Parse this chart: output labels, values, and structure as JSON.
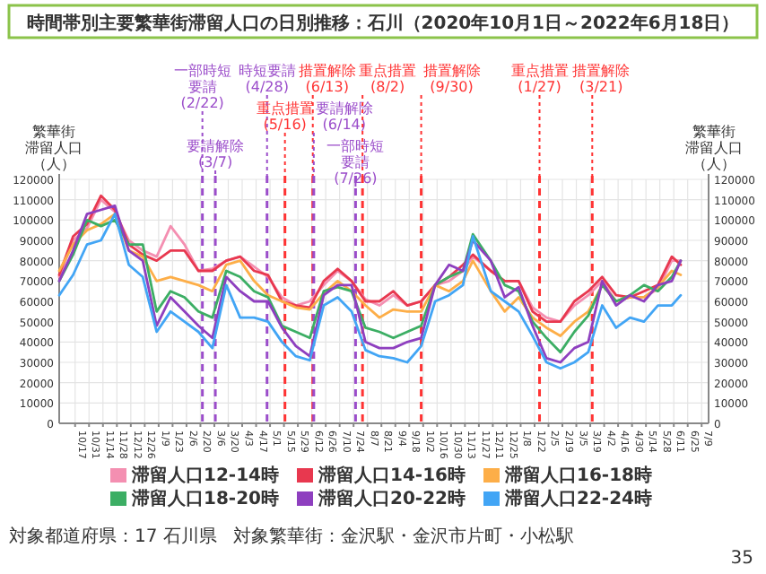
{
  "chart_data": {
    "type": "line",
    "title": "時間帯別主要繁華街滞留人口の日別推移：石川（2020年10月1日～2022年6月18日）",
    "ylabel": "繁華街滞留人口（人）",
    "y2label": "繁華街滞留人口（人）",
    "x": [
      "2020-10-01",
      "2020-10-15",
      "2020-10-29",
      "2020-11-12",
      "2020-11-26",
      "2020-12-10",
      "2020-12-24",
      "2021-01-07",
      "2021-01-21",
      "2021-02-04",
      "2021-02-18",
      "2021-03-04",
      "2021-03-18",
      "2021-04-01",
      "2021-04-15",
      "2021-04-29",
      "2021-05-13",
      "2021-05-27",
      "2021-06-10",
      "2021-06-24",
      "2021-07-08",
      "2021-07-22",
      "2021-08-05",
      "2021-08-19",
      "2021-09-02",
      "2021-09-16",
      "2021-09-30",
      "2021-10-14",
      "2021-10-28",
      "2021-11-11",
      "2021-11-21",
      "2021-12-09",
      "2021-12-23",
      "2022-01-06",
      "2022-01-20",
      "2022-02-03",
      "2022-02-17",
      "2022-03-03",
      "2022-03-17",
      "2022-03-31",
      "2022-04-14",
      "2022-04-28",
      "2022-05-12",
      "2022-05-26",
      "2022-06-09",
      "2022-06-18"
    ],
    "series": [
      {
        "name": "滞留人口12-14時",
        "color": "#f48fb1",
        "values": [
          72000,
          90000,
          96000,
          110000,
          104000,
          90000,
          85000,
          82000,
          97000,
          88000,
          75000,
          76000,
          80000,
          82000,
          77000,
          72000,
          62000,
          58000,
          60000,
          68000,
          75000,
          70000,
          61000,
          58000,
          63000,
          58000,
          60000,
          68000,
          70000,
          75000,
          82000,
          75000,
          70000,
          70000,
          57000,
          52000,
          50000,
          58000,
          63000,
          70000,
          60000,
          62000,
          62000,
          66000,
          80000,
          80000
        ]
      },
      {
        "name": "滞留人口14-16時",
        "color": "#e8384f",
        "values": [
          73000,
          92000,
          98000,
          112000,
          105000,
          88000,
          83000,
          80000,
          85000,
          85000,
          75000,
          75000,
          80000,
          82000,
          75000,
          73000,
          60000,
          58000,
          57000,
          70000,
          76000,
          70000,
          60000,
          60000,
          65000,
          58000,
          60000,
          68000,
          72000,
          78000,
          83000,
          75000,
          70000,
          70000,
          55000,
          50000,
          50000,
          60000,
          65000,
          72000,
          63000,
          62000,
          65000,
          68000,
          82000,
          78000
        ]
      },
      {
        "name": "滞留人口16-18時",
        "color": "#fdae48",
        "values": [
          75000,
          88000,
          95000,
          98000,
          103000,
          85000,
          82000,
          70000,
          72000,
          70000,
          68000,
          65000,
          78000,
          80000,
          70000,
          63000,
          60000,
          57000,
          56000,
          64000,
          70000,
          65000,
          58000,
          52000,
          56000,
          55000,
          55000,
          68000,
          65000,
          70000,
          80000,
          65000,
          55000,
          62000,
          52000,
          47000,
          43000,
          50000,
          55000,
          68000,
          60000,
          62000,
          62000,
          67000,
          75000,
          73000
        ]
      },
      {
        "name": "滞留人口18-20時",
        "color": "#3cae64",
        "values": [
          70000,
          83000,
          100000,
          97000,
          100000,
          88000,
          88000,
          55000,
          65000,
          62000,
          55000,
          52000,
          75000,
          72000,
          65000,
          62000,
          48000,
          45000,
          42000,
          65000,
          67000,
          65000,
          47000,
          45000,
          42000,
          45000,
          48000,
          68000,
          72000,
          75000,
          93000,
          80000,
          68000,
          65000,
          50000,
          42000,
          35000,
          45000,
          53000,
          68000,
          60000,
          63000,
          68000,
          65000,
          72000,
          80000
        ]
      },
      {
        "name": "滞留人口20-22時",
        "color": "#8e3fbf",
        "values": [
          70000,
          85000,
          103000,
          105000,
          107000,
          85000,
          80000,
          48000,
          62000,
          55000,
          48000,
          42000,
          72000,
          65000,
          60000,
          60000,
          47000,
          38000,
          33000,
          63000,
          68000,
          68000,
          40000,
          37000,
          37000,
          40000,
          42000,
          68000,
          78000,
          75000,
          90000,
          80000,
          62000,
          67000,
          48000,
          32000,
          30000,
          37000,
          40000,
          70000,
          58000,
          63000,
          60000,
          68000,
          70000,
          80000
        ]
      },
      {
        "name": "滞留人口22-24時",
        "color": "#42a5f5",
        "values": [
          63000,
          73000,
          88000,
          90000,
          103000,
          78000,
          72000,
          45000,
          55000,
          50000,
          45000,
          37000,
          68000,
          52000,
          52000,
          50000,
          40000,
          33000,
          31000,
          58000,
          62000,
          55000,
          36000,
          33000,
          32000,
          30000,
          38000,
          60000,
          63000,
          68000,
          92000,
          65000,
          60000,
          55000,
          43000,
          30000,
          27000,
          30000,
          35000,
          58000,
          47000,
          52000,
          50000,
          58000,
          58000,
          63000
        ]
      }
    ],
    "xlim": [
      "2020-10-01",
      "2022-07-16"
    ],
    "xticks": [
      {
        "value": "2020-10-17",
        "label": "10/17"
      },
      {
        "value": "2020-10-31",
        "label": "10/31"
      },
      {
        "value": "2020-11-14",
        "label": "11/14"
      },
      {
        "value": "2020-11-28",
        "label": "11/28"
      },
      {
        "value": "2020-12-12",
        "label": "12/12"
      },
      {
        "value": "2020-12-26",
        "label": "12/26"
      },
      {
        "value": "2021-01-09",
        "label": "1/9"
      },
      {
        "value": "2021-01-23",
        "label": "1/23"
      },
      {
        "value": "2021-02-06",
        "label": "2/6"
      },
      {
        "value": "2021-02-20",
        "label": "2/20"
      },
      {
        "value": "2021-03-06",
        "label": "3/6"
      },
      {
        "value": "2021-03-20",
        "label": "3/20"
      },
      {
        "value": "2021-04-03",
        "label": "4/3"
      },
      {
        "value": "2021-04-17",
        "label": "4/17"
      },
      {
        "value": "2021-05-01",
        "label": "5/1"
      },
      {
        "value": "2021-05-15",
        "label": "5/15"
      },
      {
        "value": "2021-05-29",
        "label": "5/29"
      },
      {
        "value": "2021-06-12",
        "label": "6/12"
      },
      {
        "value": "2021-06-26",
        "label": "6/26"
      },
      {
        "value": "2021-07-10",
        "label": "7/10"
      },
      {
        "value": "2021-07-24",
        "label": "7/24"
      },
      {
        "value": "2021-08-07",
        "label": "8/7"
      },
      {
        "value": "2021-08-21",
        "label": "8/21"
      },
      {
        "value": "2021-09-04",
        "label": "9/4"
      },
      {
        "value": "2021-09-18",
        "label": "9/18"
      },
      {
        "value": "2021-10-02",
        "label": "10/2"
      },
      {
        "value": "2021-10-16",
        "label": "10/16"
      },
      {
        "value": "2021-10-30",
        "label": "10/30"
      },
      {
        "value": "2021-11-13",
        "label": "11/13"
      },
      {
        "value": "2021-11-27",
        "label": "11/27"
      },
      {
        "value": "2021-12-11",
        "label": "12/11"
      },
      {
        "value": "2021-12-25",
        "label": "12/25"
      },
      {
        "value": "2022-01-08",
        "label": "1/8"
      },
      {
        "value": "2022-01-22",
        "label": "1/22"
      },
      {
        "value": "2022-02-05",
        "label": "2/5"
      },
      {
        "value": "2022-02-19",
        "label": "2/19"
      },
      {
        "value": "2022-03-05",
        "label": "3/5"
      },
      {
        "value": "2022-03-19",
        "label": "3/19"
      },
      {
        "value": "2022-04-02",
        "label": "4/2"
      },
      {
        "value": "2022-04-16",
        "label": "4/16"
      },
      {
        "value": "2022-04-30",
        "label": "4/30"
      },
      {
        "value": "2022-05-14",
        "label": "5/14"
      },
      {
        "value": "2022-05-28",
        "label": "5/28"
      },
      {
        "value": "2022-06-11",
        "label": "6/11"
      },
      {
        "value": "2022-06-25",
        "label": "6/25"
      },
      {
        "value": "2022-07-09",
        "label": "7/9"
      }
    ],
    "ylim": [
      0,
      120000
    ],
    "yticks": [
      0,
      10000,
      20000,
      30000,
      40000,
      50000,
      60000,
      70000,
      80000,
      90000,
      100000,
      110000,
      120000
    ],
    "y2lim": [
      0,
      120000
    ],
    "y2ticks": [
      0,
      10000,
      20000,
      30000,
      40000,
      50000,
      60000,
      70000,
      80000,
      90000,
      100000,
      110000,
      120000
    ],
    "ref_lines": [
      {
        "axis": "x",
        "value": "2021-02-22",
        "label": "一部時短要請(2/22)",
        "color": "#9b4dca",
        "line_style": "dashed"
      },
      {
        "axis": "x",
        "value": "2021-03-07",
        "label": "要請解除(3/7)",
        "color": "#9b4dca",
        "line_style": "dashed"
      },
      {
        "axis": "x",
        "value": "2021-04-28",
        "label": "時短要請(4/28)",
        "color": "#9b4dca",
        "line_style": "dashed"
      },
      {
        "axis": "x",
        "value": "2021-05-16",
        "label": "重点措置(5/16)",
        "color": "#ff3333",
        "line_style": "dashed"
      },
      {
        "axis": "x",
        "value": "2021-06-13",
        "label": "措置解除(6/13)",
        "color": "#ff3333",
        "line_style": "dashed"
      },
      {
        "axis": "x",
        "value": "2021-06-14",
        "label": "要請解除(6/14)",
        "color": "#9b4dca",
        "line_style": "dashed"
      },
      {
        "axis": "x",
        "value": "2021-07-26",
        "label": "一部時短要請(7/26)",
        "color": "#9b4dca",
        "line_style": "dashed"
      },
      {
        "axis": "x",
        "value": "2021-08-02",
        "label": "重点措置(8/2)",
        "color": "#ff3333",
        "line_style": "dashed"
      },
      {
        "axis": "x",
        "value": "2021-09-30",
        "label": "措置解除(9/30)",
        "color": "#ff3333",
        "line_style": "dashed"
      },
      {
        "axis": "x",
        "value": "2022-01-27",
        "label": "重点措置(1/27)",
        "color": "#ff3333",
        "line_style": "dashed"
      },
      {
        "axis": "x",
        "value": "2022-03-21",
        "label": "措置解除(3/21)",
        "color": "#ff3333",
        "line_style": "dashed"
      }
    ],
    "grid": true,
    "legend": "bottom",
    "annotations": [
      "対象都道府県：17 石川県",
      "対象繁華街：金沢駅・金沢市片町・小松駅",
      "35"
    ]
  }
}
